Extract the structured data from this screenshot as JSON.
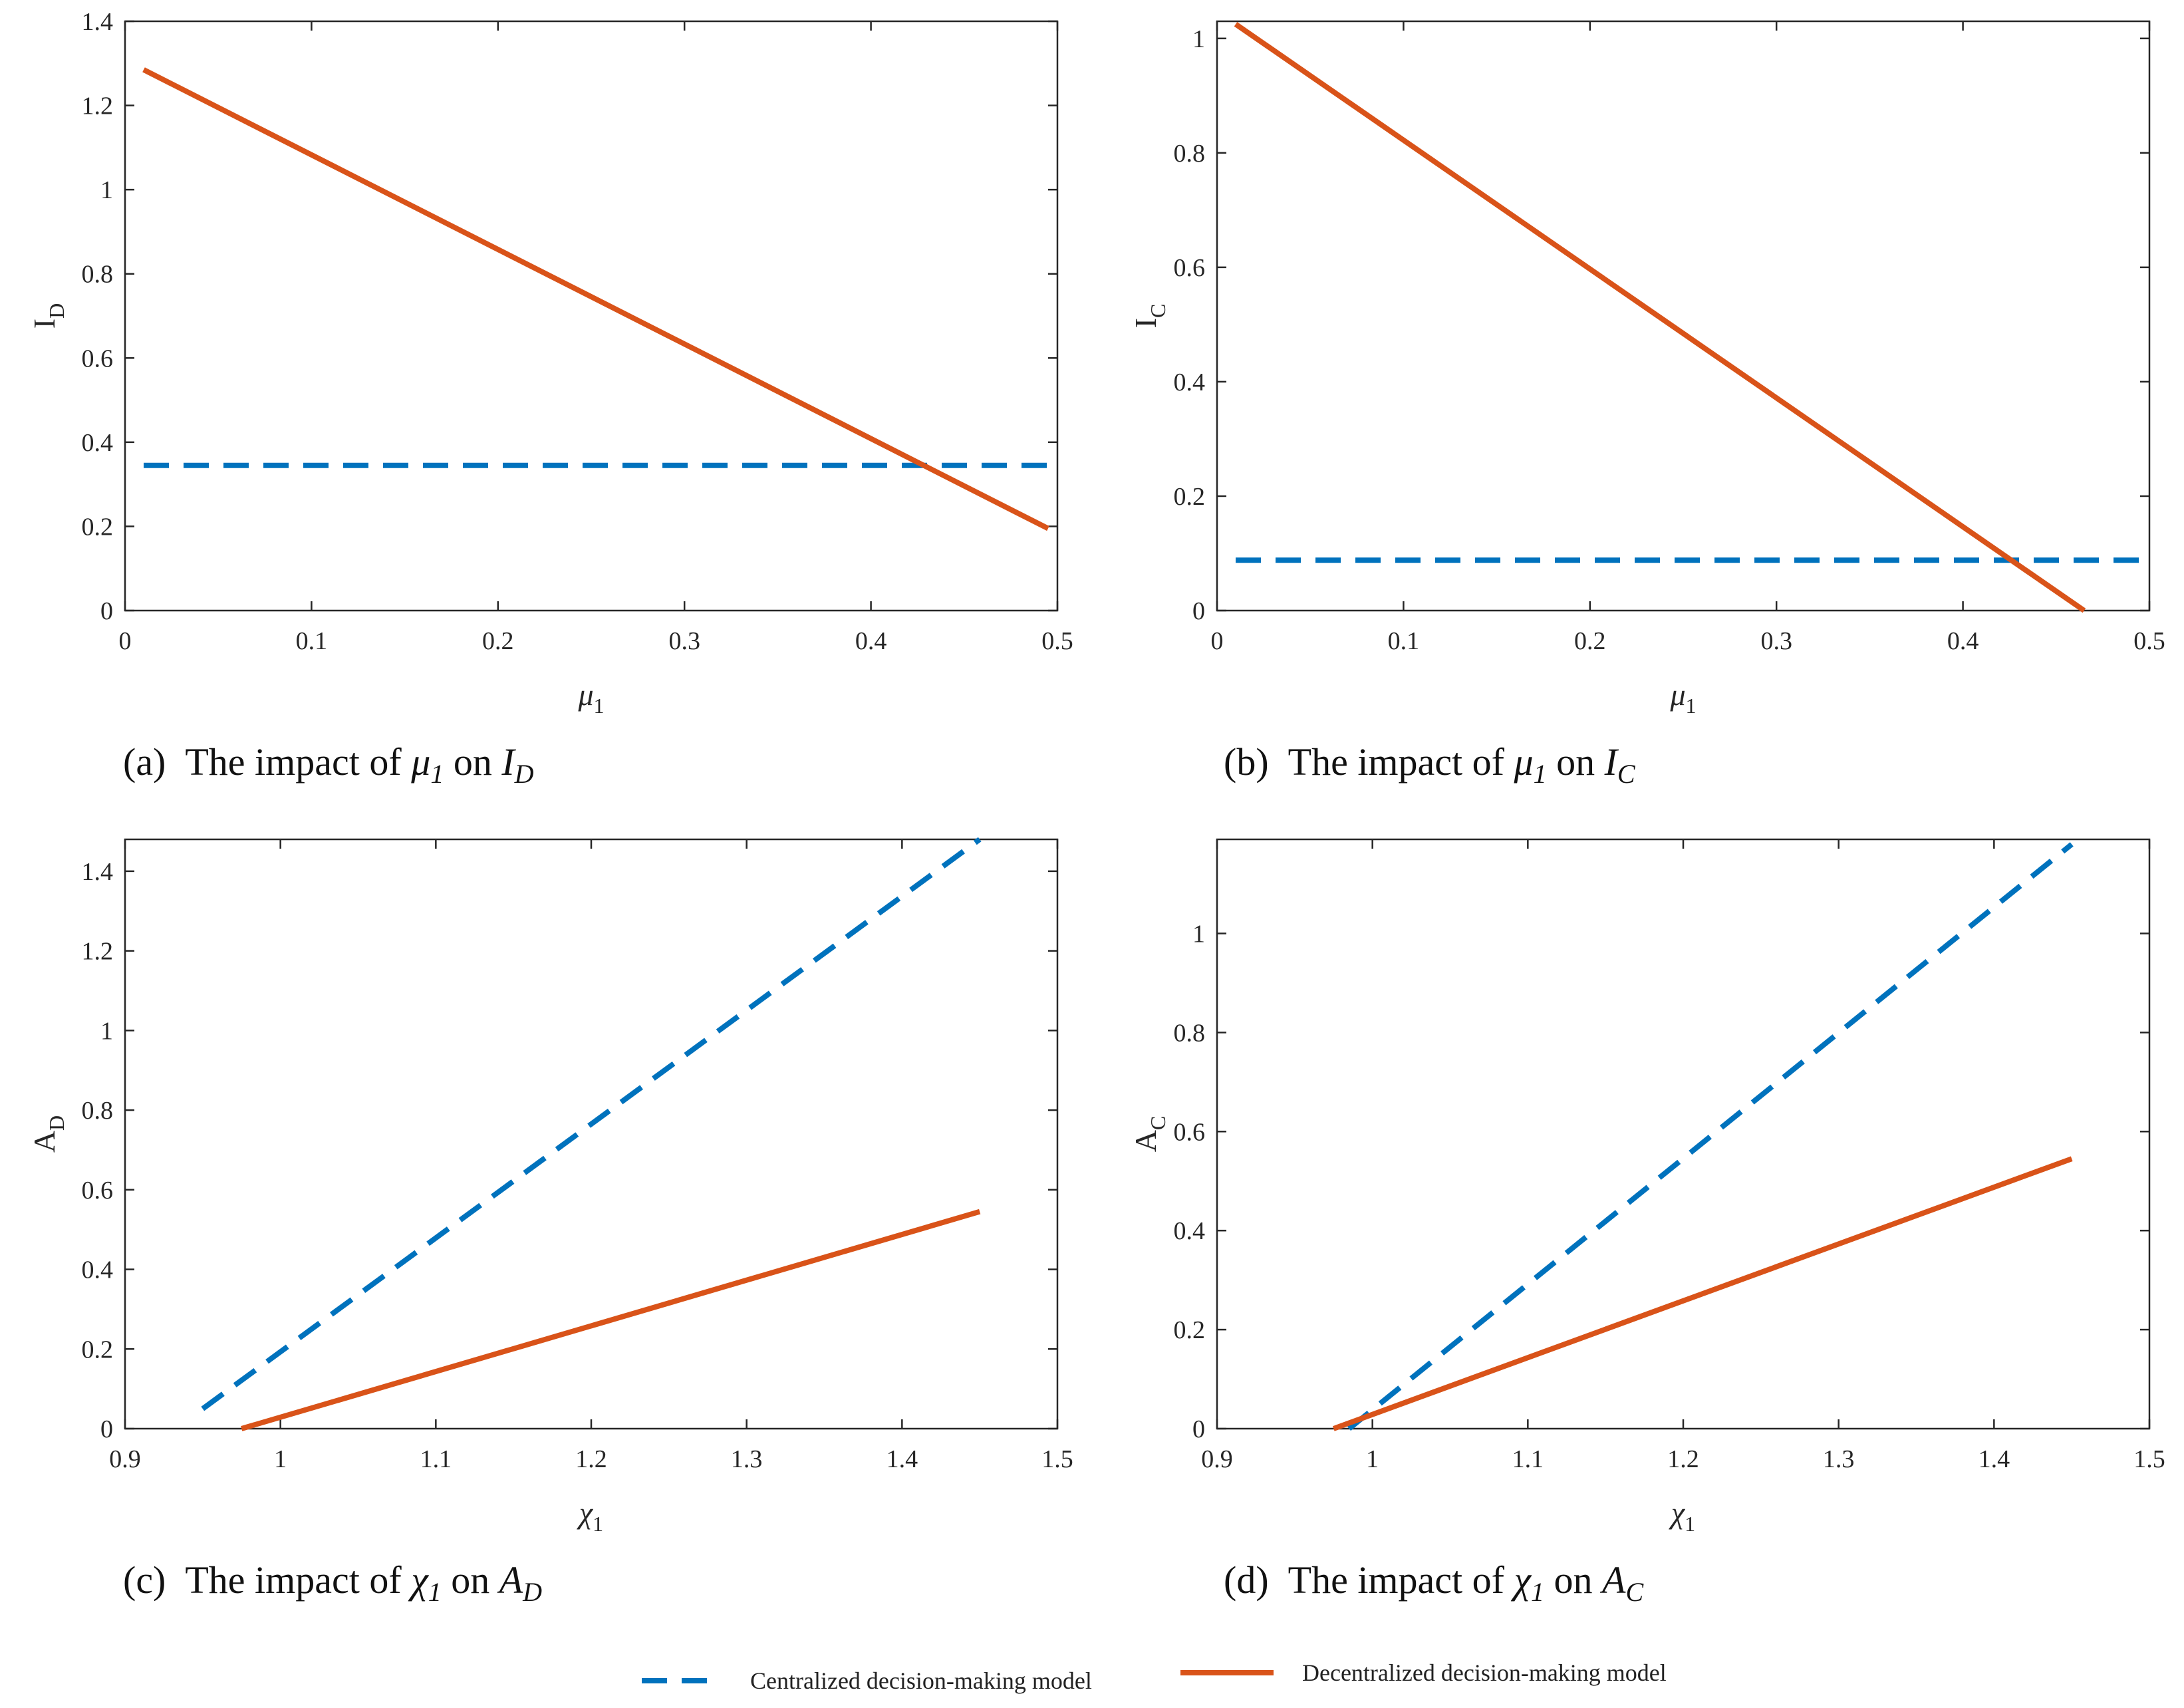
{
  "colors": {
    "centralized": "#0072BD",
    "decentralized": "#D95319",
    "axis": "#262626"
  },
  "legend": {
    "centralized": "Centralized decision-making model",
    "decentralized": "Decentralized decision-making model"
  },
  "chart_data": [
    {
      "panel": "a",
      "type": "line",
      "caption": {
        "label": "(a)",
        "text": "The impact of",
        "var": "μ",
        "var_sub": "1",
        "on": "on",
        "target": "I",
        "target_sub": "D"
      },
      "xlabel": {
        "base": "μ",
        "sub": "1"
      },
      "ylabel": {
        "base": "I",
        "sub": "D"
      },
      "xlim": [
        0,
        0.5
      ],
      "ylim": [
        0,
        1.4
      ],
      "xticks": [
        0,
        0.1,
        0.2,
        0.3,
        0.4,
        0.5
      ],
      "xtick_labels": [
        "0",
        "0.1",
        "0.2",
        "0.3",
        "0.4",
        "0.5"
      ],
      "yticks": [
        0,
        0.2,
        0.4,
        0.6,
        0.8,
        1,
        1.2,
        1.4
      ],
      "ytick_labels": [
        "0",
        "0.2",
        "0.4",
        "0.6",
        "0.8",
        "1",
        "1.2",
        "1.4"
      ],
      "series": [
        {
          "name": "Centralized decision-making model",
          "style": "dashed",
          "x": [
            0.01,
            0.495
          ],
          "y": [
            0.345,
            0.345
          ]
        },
        {
          "name": "Decentralized decision-making model",
          "style": "solid",
          "x": [
            0.01,
            0.495
          ],
          "y": [
            1.285,
            0.195
          ]
        }
      ]
    },
    {
      "panel": "b",
      "type": "line",
      "caption": {
        "label": "(b)",
        "text": "The impact of",
        "var": "μ",
        "var_sub": "1",
        "on": "on",
        "target": "I",
        "target_sub": "C"
      },
      "xlabel": {
        "base": "μ",
        "sub": "1"
      },
      "ylabel": {
        "base": "I",
        "sub": "C"
      },
      "xlim": [
        0,
        0.5
      ],
      "ylim": [
        0,
        1.03
      ],
      "xticks": [
        0,
        0.1,
        0.2,
        0.3,
        0.4,
        0.5
      ],
      "xtick_labels": [
        "0",
        "0.1",
        "0.2",
        "0.3",
        "0.4",
        "0.5"
      ],
      "yticks": [
        0,
        0.2,
        0.4,
        0.6,
        0.8,
        1
      ],
      "ytick_labels": [
        "0",
        "0.2",
        "0.4",
        "0.6",
        "0.8",
        "1"
      ],
      "series": [
        {
          "name": "Centralized decision-making model",
          "style": "dashed",
          "x": [
            0.01,
            0.5
          ],
          "y": [
            0.088,
            0.088
          ]
        },
        {
          "name": "Decentralized decision-making model",
          "style": "solid",
          "x": [
            0.01,
            0.465
          ],
          "y": [
            1.025,
            0
          ]
        }
      ]
    },
    {
      "panel": "c",
      "type": "line",
      "caption": {
        "label": "(c)",
        "text": "The impact of",
        "var": "χ",
        "var_sub": "1",
        "on": "on",
        "target": "A",
        "target_sub": "D"
      },
      "xlabel": {
        "base": "χ",
        "sub": "1"
      },
      "ylabel": {
        "base": "A",
        "sub": "D"
      },
      "xlim": [
        0.9,
        1.5
      ],
      "ylim": [
        0,
        1.48
      ],
      "xticks": [
        0.9,
        1,
        1.1,
        1.2,
        1.3,
        1.4,
        1.5
      ],
      "xtick_labels": [
        "0.9",
        "1",
        "1.1",
        "1.2",
        "1.3",
        "1.4",
        "1.5"
      ],
      "yticks": [
        0,
        0.2,
        0.4,
        0.6,
        0.8,
        1,
        1.2,
        1.4
      ],
      "ytick_labels": [
        "0",
        "0.2",
        "0.4",
        "0.6",
        "0.8",
        "1",
        "1.2",
        "1.4"
      ],
      "series": [
        {
          "name": "Centralized decision-making model",
          "style": "dashed",
          "x": [
            0.95,
            1.45
          ],
          "y": [
            0.05,
            1.48
          ]
        },
        {
          "name": "Decentralized decision-making model",
          "style": "solid",
          "x": [
            0.975,
            1.45
          ],
          "y": [
            0,
            0.545
          ]
        }
      ]
    },
    {
      "panel": "d",
      "type": "line",
      "caption": {
        "label": "(d)",
        "text": "The impact of",
        "var": "χ",
        "var_sub": "1",
        "on": "on",
        "target": "A",
        "target_sub": "C"
      },
      "xlabel": {
        "base": "χ",
        "sub": "1"
      },
      "ylabel": {
        "base": "A",
        "sub": "C"
      },
      "xlim": [
        0.9,
        1.5
      ],
      "ylim": [
        0,
        1.19
      ],
      "xticks": [
        0.9,
        1,
        1.1,
        1.2,
        1.3,
        1.4,
        1.5
      ],
      "xtick_labels": [
        "0.9",
        "1",
        "1.1",
        "1.2",
        "1.3",
        "1.4",
        "1.5"
      ],
      "yticks": [
        0,
        0.2,
        0.4,
        0.6,
        0.8,
        1
      ],
      "ytick_labels": [
        "0",
        "0.2",
        "0.4",
        "0.6",
        "0.8",
        "1"
      ],
      "series": [
        {
          "name": "Centralized decision-making model",
          "style": "dashed",
          "x": [
            0.985,
            1.45
          ],
          "y": [
            0,
            1.18
          ]
        },
        {
          "name": "Decentralized decision-making model",
          "style": "solid",
          "x": [
            0.975,
            1.45
          ],
          "y": [
            0,
            0.545
          ]
        }
      ]
    }
  ]
}
